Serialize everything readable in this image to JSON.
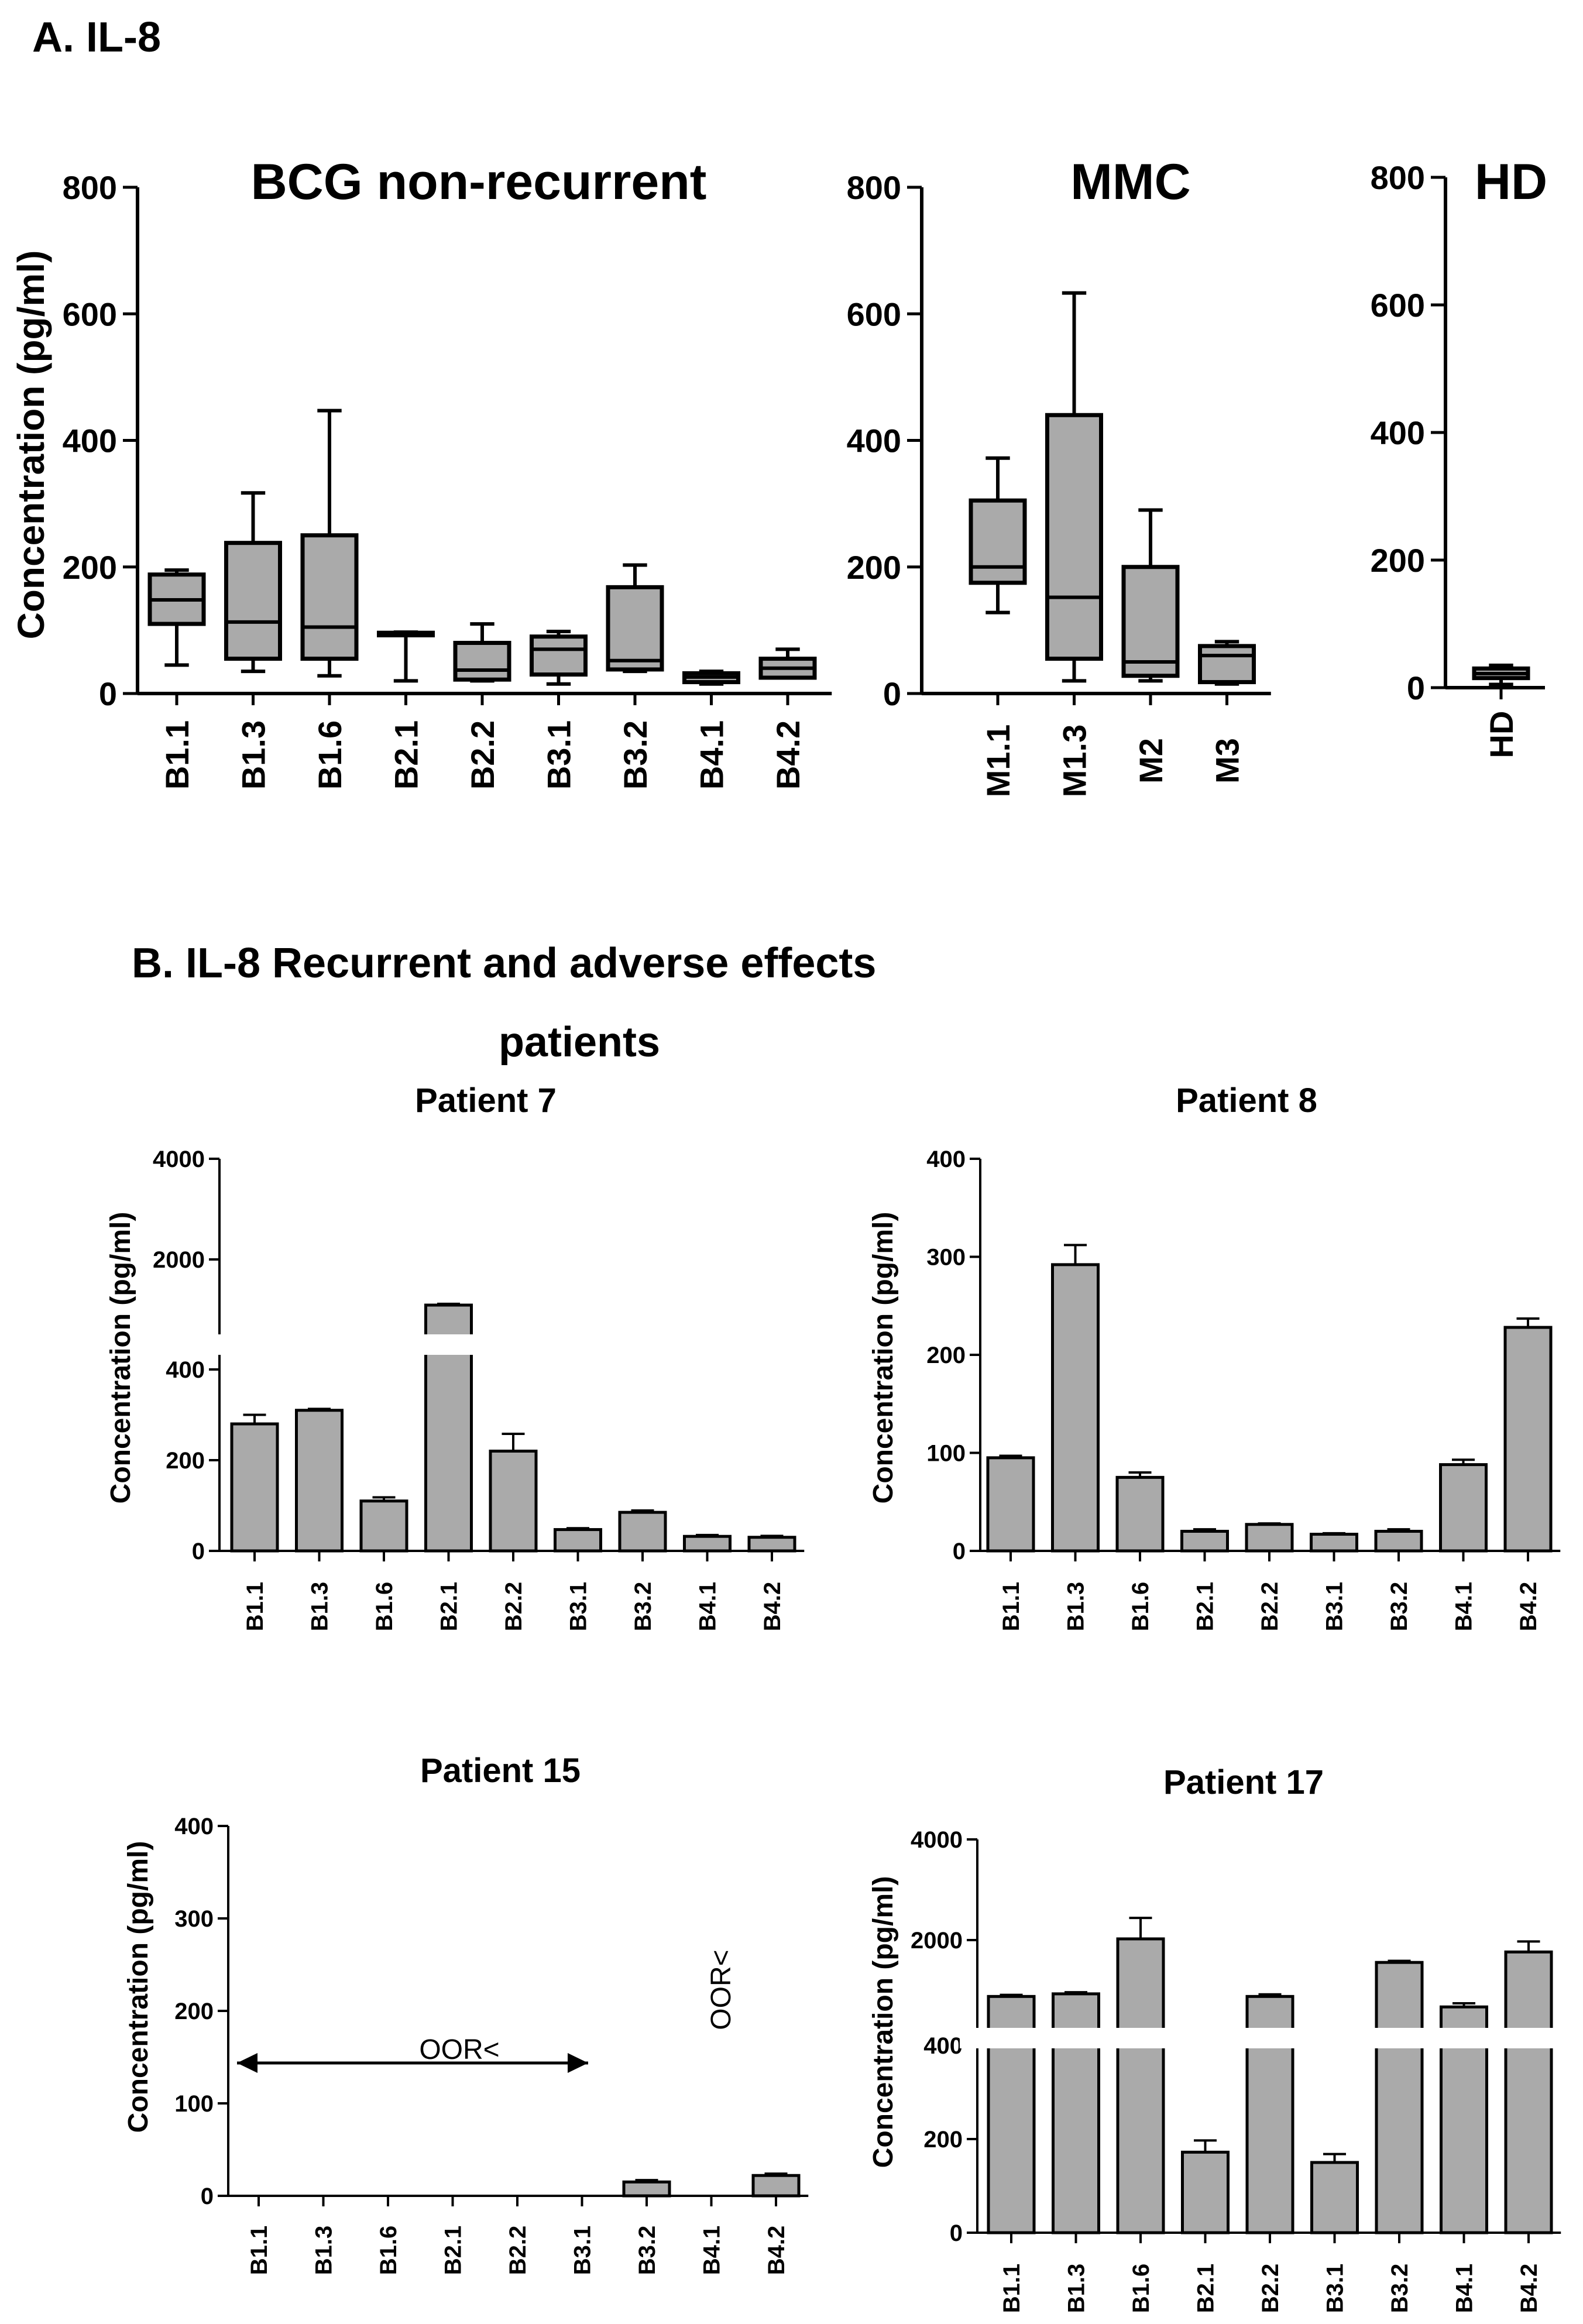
{
  "figure": {
    "section_a": "A. IL-8",
    "section_b_line1": "B.   IL-8 Recurrent and adverse effects",
    "section_b_line2": "patients"
  },
  "chart_data": [
    {
      "id": "bcg",
      "type": "box",
      "title": "BCG non-recurrent",
      "ylabel": "Concentration (pg/ml)",
      "ylim": [
        0,
        800
      ],
      "yticks": [
        "0",
        "200",
        "400",
        "600",
        "800"
      ],
      "categories": [
        "B1.1",
        "B1.3",
        "B1.6",
        "B2.1",
        "B2.2",
        "B3.1",
        "B3.2",
        "B4.1",
        "B4.2"
      ],
      "boxes": [
        {
          "min": 45,
          "q1": 110,
          "median": 148,
          "q3": 188,
          "max": 195
        },
        {
          "min": 35,
          "q1": 55,
          "median": 113,
          "q3": 238,
          "max": 317
        },
        {
          "min": 28,
          "q1": 55,
          "median": 105,
          "q3": 250,
          "max": 447
        },
        {
          "min": 20,
          "q1": 92,
          "median": 94,
          "q3": 96,
          "max": 97
        },
        {
          "min": 20,
          "q1": 22,
          "median": 37,
          "q3": 80,
          "max": 110
        },
        {
          "min": 15,
          "q1": 30,
          "median": 70,
          "q3": 90,
          "max": 98
        },
        {
          "min": 35,
          "q1": 38,
          "median": 52,
          "q3": 168,
          "max": 203
        },
        {
          "min": 15,
          "q1": 18,
          "median": 26,
          "q3": 32,
          "max": 35
        },
        {
          "min": 25,
          "q1": 25,
          "median": 40,
          "q3": 55,
          "max": 70
        }
      ]
    },
    {
      "id": "mmc",
      "type": "box",
      "title": "MMC",
      "ylim": [
        0,
        800
      ],
      "yticks": [
        "0",
        "200",
        "400",
        "600",
        "800"
      ],
      "categories": [
        "M1.1",
        "M1.3",
        "M2",
        "M3"
      ],
      "boxes": [
        {
          "min": 128,
          "q1": 175,
          "median": 200,
          "q3": 305,
          "max": 372
        },
        {
          "min": 20,
          "q1": 55,
          "median": 152,
          "q3": 440,
          "max": 633
        },
        {
          "min": 20,
          "q1": 28,
          "median": 50,
          "q3": 200,
          "max": 290
        },
        {
          "min": 15,
          "q1": 18,
          "median": 60,
          "q3": 75,
          "max": 82
        }
      ]
    },
    {
      "id": "hd",
      "type": "box",
      "title": "HD",
      "ylim": [
        0,
        800
      ],
      "yticks": [
        "0",
        "200",
        "400",
        "600",
        "800"
      ],
      "categories": [
        "HD"
      ],
      "boxes": [
        {
          "min": 5,
          "q1": 15,
          "median": 22,
          "q3": 30,
          "max": 35
        }
      ]
    },
    {
      "id": "p7",
      "type": "bar",
      "title": "Patient 7",
      "ylabel": "Concentration (pg/ml)",
      "axis_break": true,
      "yticks": [
        "0",
        "200",
        "400",
        "2000",
        "4000"
      ],
      "categories": [
        "B1.1",
        "B1.3",
        "B1.6",
        "B2.1",
        "B2.2",
        "B3.1",
        "B3.2",
        "B4.1",
        "B4.2"
      ],
      "values": [
        280,
        310,
        110,
        1000,
        220,
        47,
        85,
        32,
        30
      ],
      "errors": [
        20,
        3,
        8,
        25,
        38,
        3,
        4,
        3,
        3
      ]
    },
    {
      "id": "p8",
      "type": "bar",
      "title": "Patient 8",
      "ylabel": "Concentration (pg/ml)",
      "ylim": [
        0,
        400
      ],
      "yticks": [
        "0",
        "100",
        "200",
        "300",
        "400"
      ],
      "categories": [
        "B1.1",
        "B1.3",
        "B1.6",
        "B2.1",
        "B2.2",
        "B3.1",
        "B3.2",
        "B4.1",
        "B4.2"
      ],
      "values": [
        95,
        292,
        75,
        20,
        27,
        17,
        20,
        88,
        228
      ],
      "errors": [
        2,
        20,
        5,
        2,
        1,
        1,
        2,
        5,
        9
      ]
    },
    {
      "id": "p15",
      "type": "bar",
      "title": "Patient 15",
      "ylabel": "Concentration (pg/ml)",
      "ylim": [
        0,
        400
      ],
      "yticks": [
        "0",
        "100",
        "200",
        "300",
        "400"
      ],
      "categories": [
        "B1.1",
        "B1.3",
        "B1.6",
        "B2.1",
        "B2.2",
        "B3.1",
        "B3.2",
        "B4.1",
        "B4.2"
      ],
      "values": [
        0,
        0,
        0,
        0,
        0,
        0,
        15,
        0,
        22
      ],
      "errors": [
        0,
        0,
        0,
        0,
        0,
        0,
        2,
        0,
        2
      ],
      "annotations": [
        "OOR<",
        "OOR<"
      ]
    },
    {
      "id": "p17",
      "type": "bar",
      "title": "Patient 17",
      "ylabel": "Concentration (pg/ml)",
      "axis_break": true,
      "yticks": [
        "0",
        "200",
        "400",
        "2000",
        "4000"
      ],
      "categories": [
        "B1.1",
        "B1.3",
        "B1.6",
        "B2.1",
        "B2.2",
        "B3.1",
        "B3.2",
        "B4.1",
        "B4.2"
      ],
      "values": [
        1000,
        1050,
        2100,
        172,
        1000,
        150,
        1650,
        800,
        1850
      ],
      "errors": [
        30,
        30,
        400,
        25,
        40,
        18,
        30,
        70,
        200
      ]
    }
  ]
}
